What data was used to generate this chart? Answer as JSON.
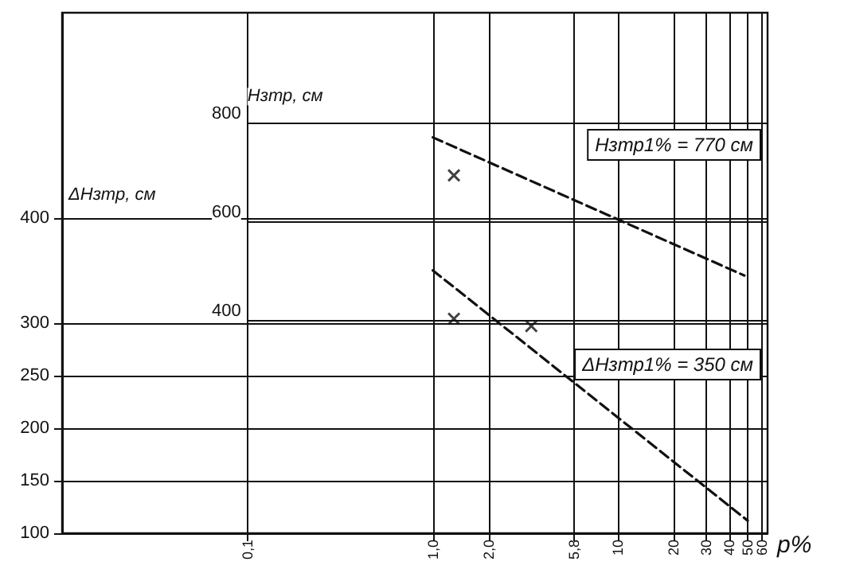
{
  "chart_data": {
    "type": "line",
    "xlabel": "p%",
    "ylabel": "ΔHзтр, см",
    "y2label": "Hзтр, см",
    "annotations": [
      "Hзтр1% = 770 см",
      "ΔHзтр1% = 350 см"
    ],
    "xlim": [
      0.01,
      64
    ],
    "xticks": [
      {
        "value": 0.1,
        "label": "0,1"
      },
      {
        "value": 1,
        "label": "1,0"
      },
      {
        "value": 2,
        "label": "2,0"
      },
      {
        "value": 5.8,
        "label": "5,8"
      },
      10,
      20,
      30,
      40,
      50,
      60
    ],
    "ylim": [
      100,
      595
    ],
    "yticks": [
      100,
      150,
      200,
      250,
      300,
      400
    ],
    "y2lim": [
      400,
      800
    ],
    "y2ticks": [
      400,
      600,
      800
    ],
    "grid": true,
    "log": "x",
    "line_style": "dashed",
    "series": [
      {
        "axis": "y2",
        "color": "#111111",
        "x": [
          1,
          48
        ],
        "values": [
          770,
          490
        ]
      },
      {
        "color": "#111111",
        "x": [
          1,
          50
        ],
        "values": [
          350,
          112
        ]
      },
      {
        "type": "scatter",
        "axis": "y2",
        "marker": "cross",
        "color": "#111111",
        "x": [
          1.3
        ],
        "values": [
          693
        ]
      },
      {
        "type": "scatter",
        "marker": "cross",
        "color": "#111111",
        "x": [
          1.3,
          3.4
        ],
        "values": [
          304,
          297
        ]
      }
    ]
  }
}
